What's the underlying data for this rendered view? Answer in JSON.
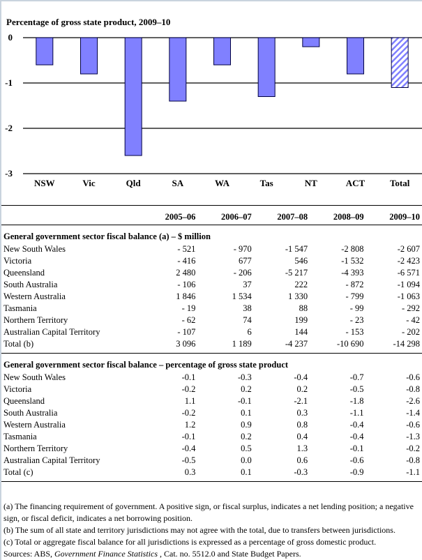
{
  "chart_data": {
    "type": "bar",
    "title": "Percentage of gross state product, 2009–10",
    "xlabel": "",
    "ylabel": "",
    "categories": [
      "NSW",
      "Vic",
      "Qld",
      "SA",
      "WA",
      "Tas",
      "NT",
      "ACT",
      "Total"
    ],
    "values": [
      -0.6,
      -0.8,
      -2.6,
      -1.4,
      -0.6,
      -1.3,
      -0.2,
      -0.8,
      -1.1
    ],
    "ylim": [
      -3,
      0
    ],
    "yticks": [
      "0",
      "-1",
      "-2",
      "-3"
    ],
    "grid": true,
    "bar_color": "#8080ff",
    "total_bar_style": "hatched",
    "legend": "none"
  },
  "table": {
    "years": [
      "2005–06",
      "2006–07",
      "2007–08",
      "2008–09",
      "2009–10"
    ],
    "section1": {
      "title": "General government sector fiscal balance (a) – $ million",
      "rows": [
        {
          "label": "New South Wales",
          "values": [
            "- 521",
            "- 970",
            "-1 547",
            "-2 808",
            "-2 607"
          ]
        },
        {
          "label": "Victoria",
          "values": [
            "- 416",
            "677",
            "546",
            "-1 532",
            "-2 423"
          ]
        },
        {
          "label": "Queensland",
          "values": [
            "2 480",
            "- 206",
            "-5 217",
            "-4 393",
            "-6 571"
          ]
        },
        {
          "label": "South Australia",
          "values": [
            "- 106",
            "37",
            "222",
            "- 872",
            "-1 094"
          ]
        },
        {
          "label": "Western Australia",
          "values": [
            "1 846",
            "1 534",
            "1 330",
            "- 799",
            "-1 063"
          ]
        },
        {
          "label": "Tasmania",
          "values": [
            "- 19",
            "38",
            "88",
            "- 99",
            "- 292"
          ]
        },
        {
          "label": "Northern Territory",
          "values": [
            "- 62",
            "74",
            "199",
            "- 23",
            "- 42"
          ]
        },
        {
          "label": "Australian Capital Territory",
          "values": [
            "- 107",
            "6",
            "144",
            "- 153",
            "- 202"
          ]
        },
        {
          "label": "Total (b)",
          "values": [
            "3 096",
            "1 189",
            "-4 237",
            "-10 690",
            "-14 298"
          ]
        }
      ]
    },
    "section2": {
      "title": "General government sector fiscal balance – percentage of gross state product",
      "rows": [
        {
          "label": "New South Wales",
          "values": [
            "-0.1",
            "-0.3",
            "-0.4",
            "-0.7",
            "-0.6"
          ]
        },
        {
          "label": "Victoria",
          "values": [
            "-0.2",
            "0.2",
            "0.2",
            "-0.5",
            "-0.8"
          ]
        },
        {
          "label": "Queensland",
          "values": [
            "1.1",
            "-0.1",
            "-2.1",
            "-1.8",
            "-2.6"
          ]
        },
        {
          "label": "South Australia",
          "values": [
            "-0.2",
            "0.1",
            "0.3",
            "-1.1",
            "-1.4"
          ]
        },
        {
          "label": "Western Australia",
          "values": [
            "1.2",
            "0.9",
            "0.8",
            "-0.4",
            "-0.6"
          ]
        },
        {
          "label": "Tasmania",
          "values": [
            "-0.1",
            "0.2",
            "0.4",
            "-0.4",
            "-1.3"
          ]
        },
        {
          "label": "Northern Territory",
          "values": [
            "-0.4",
            "0.5",
            "1.3",
            "-0.1",
            "-0.2"
          ]
        },
        {
          "label": "Australian Capital Territory",
          "values": [
            "-0.5",
            "0.0",
            "0.6",
            "-0.6",
            "-0.8"
          ]
        },
        {
          "label": "Total (c)",
          "values": [
            "0.3",
            "0.1",
            "-0.3",
            "-0.9",
            "-1.1"
          ]
        }
      ]
    }
  },
  "notes": {
    "a": "(a) The financing requirement of government. A positive sign, or fiscal surplus, indicates a net lending position; a negative sign, or fiscal deficit, indicates a net borrowing position.",
    "b": "(b) The sum of all state and territory jurisdictions may not agree with the total, due to transfers between jurisdictions.",
    "c": "(c) Total or aggregate fiscal balance for all jurisdictions is expressed as a percentage of gross domestic product.",
    "sources_prefix": "Sources: ABS, ",
    "sources_title": "Government Finance Statistics",
    "sources_suffix": " , Cat. no. 5512.0 and State Budget Papers."
  }
}
